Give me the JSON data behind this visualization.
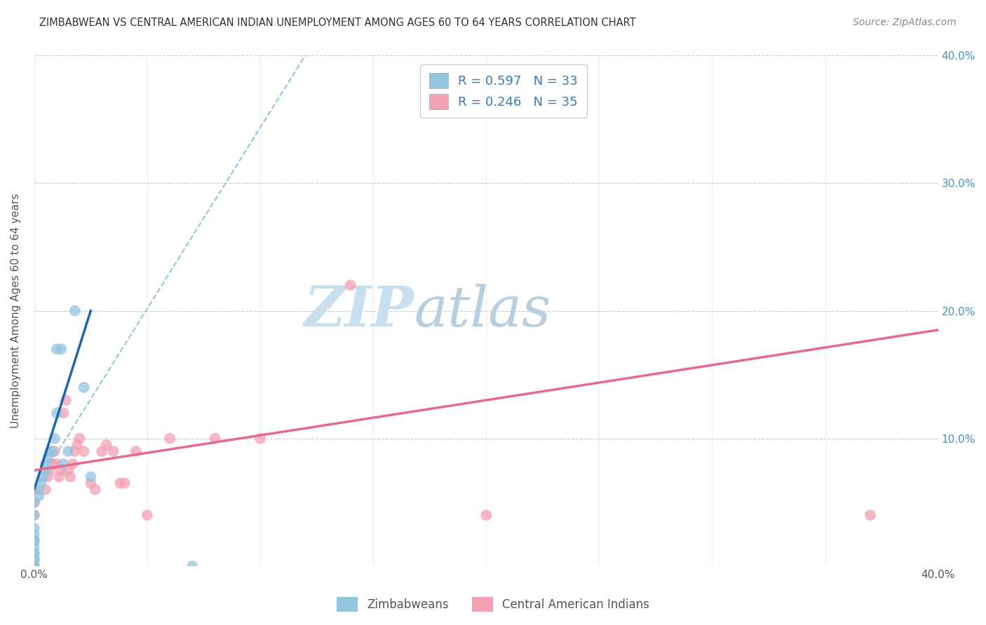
{
  "title": "ZIMBABWEAN VS CENTRAL AMERICAN INDIAN UNEMPLOYMENT AMONG AGES 60 TO 64 YEARS CORRELATION CHART",
  "source": "Source: ZipAtlas.com",
  "ylabel": "Unemployment Among Ages 60 to 64 years",
  "xmin": 0.0,
  "xmax": 0.4,
  "ymin": 0.0,
  "ymax": 0.4,
  "x_ticks": [
    0.0,
    0.05,
    0.1,
    0.15,
    0.2,
    0.25,
    0.3,
    0.35,
    0.4
  ],
  "y_ticks": [
    0.0,
    0.1,
    0.2,
    0.3,
    0.4
  ],
  "y_tick_labels_right": [
    "",
    "10.0%",
    "20.0%",
    "30.0%",
    "40.0%"
  ],
  "legend_r1": "R = 0.597",
  "legend_n1": "N = 33",
  "legend_r2": "R = 0.246",
  "legend_n2": "N = 35",
  "color_blue": "#92c5de",
  "color_pink": "#f4a0b5",
  "trendline_blue_solid_color": "#2166ac",
  "trendline_blue_dashed_color": "#92c5de",
  "trendline_pink_color": "#e8698d",
  "background_color": "#ffffff",
  "grid_color": "#cccccc",
  "watermark_zip_color": "#c8dff0",
  "watermark_atlas_color": "#b8cfe0",
  "zimbabwe_x": [
    0.0,
    0.0,
    0.0,
    0.0,
    0.0,
    0.0,
    0.0,
    0.0,
    0.0,
    0.0,
    0.0,
    0.0,
    0.0,
    0.0,
    0.002,
    0.002,
    0.003,
    0.004,
    0.005,
    0.005,
    0.006,
    0.007,
    0.008,
    0.009,
    0.01,
    0.01,
    0.012,
    0.013,
    0.015,
    0.018,
    0.022,
    0.025,
    0.07
  ],
  "zimbabwe_y": [
    0.0,
    0.0,
    0.0,
    0.005,
    0.005,
    0.01,
    0.01,
    0.015,
    0.02,
    0.02,
    0.025,
    0.03,
    0.04,
    0.05,
    0.055,
    0.06,
    0.065,
    0.07,
    0.075,
    0.08,
    0.085,
    0.09,
    0.09,
    0.1,
    0.12,
    0.17,
    0.17,
    0.08,
    0.09,
    0.2,
    0.14,
    0.07,
    0.0
  ],
  "central_american_x": [
    0.0,
    0.0,
    0.0,
    0.005,
    0.006,
    0.007,
    0.008,
    0.009,
    0.01,
    0.011,
    0.012,
    0.013,
    0.014,
    0.015,
    0.016,
    0.017,
    0.018,
    0.019,
    0.02,
    0.022,
    0.025,
    0.027,
    0.03,
    0.032,
    0.035,
    0.038,
    0.04,
    0.045,
    0.05,
    0.06,
    0.08,
    0.1,
    0.14,
    0.2,
    0.37
  ],
  "central_american_y": [
    0.04,
    0.05,
    0.06,
    0.06,
    0.07,
    0.075,
    0.08,
    0.09,
    0.08,
    0.07,
    0.075,
    0.12,
    0.13,
    0.075,
    0.07,
    0.08,
    0.09,
    0.095,
    0.1,
    0.09,
    0.065,
    0.06,
    0.09,
    0.095,
    0.09,
    0.065,
    0.065,
    0.09,
    0.04,
    0.1,
    0.1,
    0.1,
    0.22,
    0.04,
    0.04
  ],
  "trendline_blue_x0": 0.0,
  "trendline_blue_y0": 0.06,
  "trendline_blue_x1": 0.025,
  "trendline_blue_y1": 0.2,
  "trendline_blue_dash_x0": 0.0,
  "trendline_blue_dash_y0": 0.06,
  "trendline_blue_dash_x1": 0.12,
  "trendline_blue_dash_y1": 0.4,
  "trendline_pink_x0": 0.0,
  "trendline_pink_y0": 0.075,
  "trendline_pink_x1": 0.4,
  "trendline_pink_y1": 0.185
}
